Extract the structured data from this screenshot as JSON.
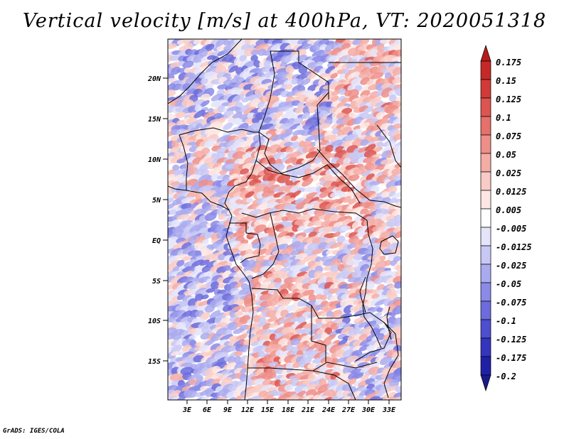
{
  "title": "Vertical velocity [m/s] at 400hPa, VT: 2020051318",
  "credit": "GrADS: IGES/COLA",
  "lat_labels": [
    "20N",
    "15N",
    "10N",
    "5N",
    "EQ",
    "5S",
    "10S",
    "15S"
  ],
  "lon_labels": [
    "3E",
    "6E",
    "9E",
    "12E",
    "15E",
    "18E",
    "21E",
    "24E",
    "27E",
    "30E",
    "33E"
  ],
  "colorbar": {
    "labels": [
      "0.175",
      "0.15",
      "0.125",
      "0.1",
      "0.075",
      "0.05",
      "0.025",
      "0.0125",
      "0.005",
      "-0.005",
      "-0.0125",
      "-0.025",
      "-0.05",
      "-0.075",
      "-0.1",
      "-0.125",
      "-0.175",
      "-0.2"
    ],
    "colors": [
      "#b71c1c",
      "#c62828",
      "#d13a36",
      "#dc5550",
      "#e6706a",
      "#ee8e88",
      "#f4aca6",
      "#f9cbc6",
      "#fde6e3",
      "#ffffff",
      "#e4e4fb",
      "#c8c8f5",
      "#aaaaef",
      "#8a8ae7",
      "#6c6cdc",
      "#4e4ed0",
      "#3434be",
      "#2020a6",
      "#1a1a8c"
    ]
  },
  "map": {
    "colors": {
      "land_border": "#000000",
      "frame": "#000000"
    }
  }
}
